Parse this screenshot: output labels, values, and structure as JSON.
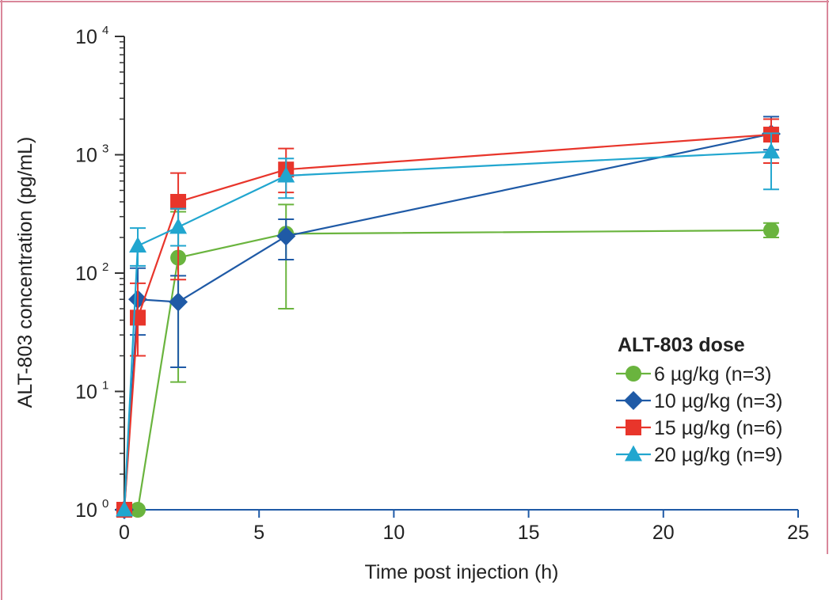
{
  "chart_data": {
    "type": "line",
    "title": "",
    "xlabel": "Time post injection (h)",
    "ylabel": "ALT-803 concentration (pg/mL)",
    "xlim": [
      0,
      25
    ],
    "ylim": [
      1,
      10000
    ],
    "yscale": "log",
    "x_ticks": [
      "0",
      "5",
      "10",
      "15",
      "20",
      "25"
    ],
    "x_tick_values": [
      0,
      5,
      10,
      15,
      20,
      25
    ],
    "y_ticks": [
      {
        "base": "10",
        "exp": "0",
        "value": 1
      },
      {
        "base": "10",
        "exp": "1",
        "value": 10
      },
      {
        "base": "10",
        "exp": "2",
        "value": 100
      },
      {
        "base": "10",
        "exp": "3",
        "value": 1000
      },
      {
        "base": "10",
        "exp": "4",
        "value": 10000
      }
    ],
    "grid": false,
    "legend_title": "ALT-803 dose",
    "legend_position": "lower-right",
    "series": [
      {
        "name": "6 µg/kg (n=3)",
        "marker": "circle",
        "color": "#6ab43e",
        "x": [
          0,
          0.5,
          2,
          6,
          24
        ],
        "y": [
          1,
          1,
          135,
          215,
          230
        ],
        "err_low": [
          null,
          null,
          12,
          50,
          200
        ],
        "err_high": [
          null,
          null,
          330,
          380,
          265
        ]
      },
      {
        "name": "10 µg/kg (n=3)",
        "marker": "diamond",
        "color": "#1f5aa6",
        "x": [
          0,
          0.5,
          2,
          6,
          24
        ],
        "y": [
          1,
          60,
          57,
          205,
          1500
        ],
        "err_low": [
          null,
          30,
          16,
          130,
          1100
        ],
        "err_high": [
          null,
          110,
          95,
          285,
          2100
        ]
      },
      {
        "name": "15 µg/kg (n=6)",
        "marker": "square",
        "color": "#e8352b",
        "x": [
          0,
          0.5,
          2,
          6,
          24
        ],
        "y": [
          1,
          42,
          400,
          750,
          1480
        ],
        "err_low": [
          null,
          20,
          88,
          480,
          850
        ],
        "err_high": [
          null,
          82,
          700,
          1130,
          2000
        ]
      },
      {
        "name": "20 µg/kg (n=9)",
        "marker": "triangle",
        "color": "#21a6cf",
        "x": [
          0,
          0.5,
          2,
          6,
          24
        ],
        "y": [
          1,
          170,
          245,
          665,
          1060
        ],
        "err_low": [
          null,
          115,
          170,
          430,
          510
        ],
        "err_high": [
          null,
          240,
          350,
          930,
          1520
        ]
      }
    ]
  },
  "colors": {
    "frame": "#d9879a",
    "axis": "#1f5aa6"
  }
}
